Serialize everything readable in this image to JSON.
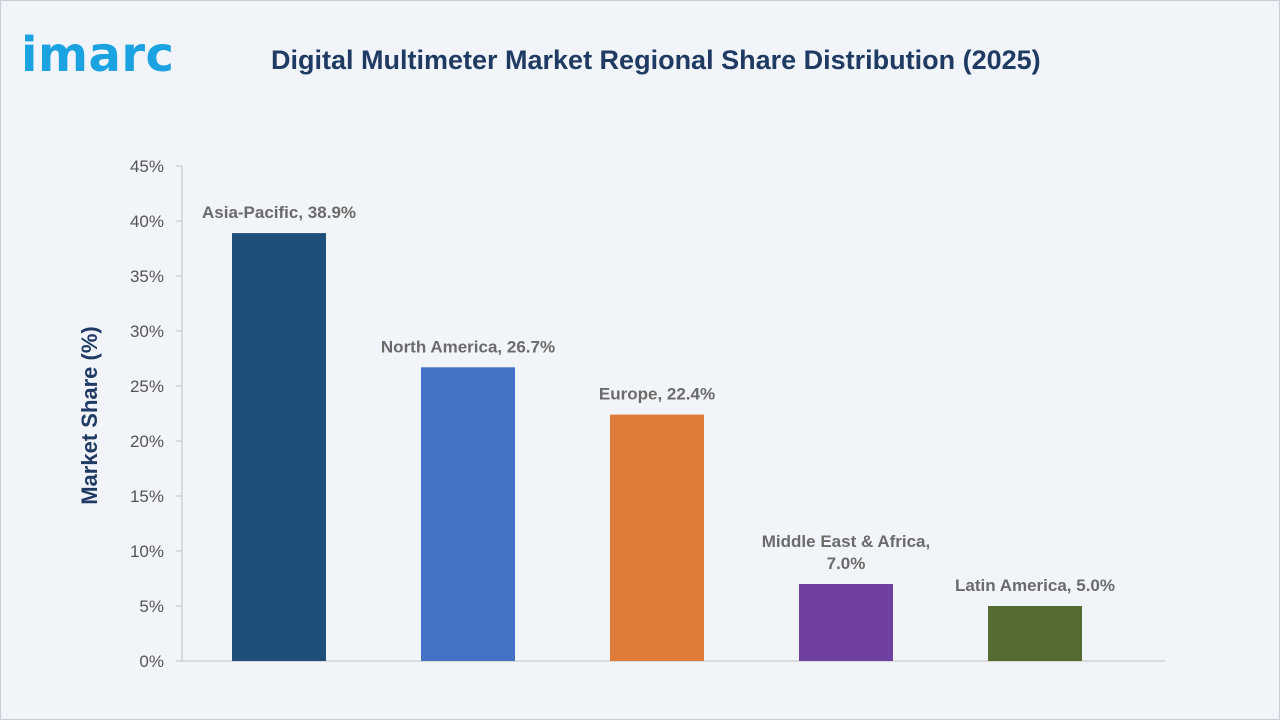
{
  "brand": {
    "logo_text": "imarc"
  },
  "chart_data": {
    "type": "bar",
    "title": "Digital Multimeter Market Regional Share Distribution (2025)",
    "xlabel": "",
    "ylabel": "Market Share (%)",
    "ylim": [
      0,
      45
    ],
    "yticks": [
      0,
      5,
      10,
      15,
      20,
      25,
      30,
      35,
      40,
      45
    ],
    "ytick_labels": [
      "0%",
      "5%",
      "10%",
      "15%",
      "20%",
      "25%",
      "30%",
      "35%",
      "40%",
      "45%"
    ],
    "categories": [
      "Asia-Pacific",
      "North America",
      "Europe",
      "Middle East & Africa",
      "Latin America"
    ],
    "values": [
      38.9,
      26.7,
      22.4,
      7.0,
      5.0
    ],
    "data_labels": [
      [
        "Asia-Pacific, 38.9%"
      ],
      [
        "North America, 26.7%"
      ],
      [
        "Europe, 22.4%"
      ],
      [
        "Middle East & Africa,",
        "7.0%"
      ],
      [
        "Latin America, 5.0%"
      ]
    ],
    "colors": [
      "#1f4e79",
      "#4472c4",
      "#e07b39",
      "#7040a0",
      "#556b2f"
    ],
    "grid": false,
    "legend": "none"
  }
}
